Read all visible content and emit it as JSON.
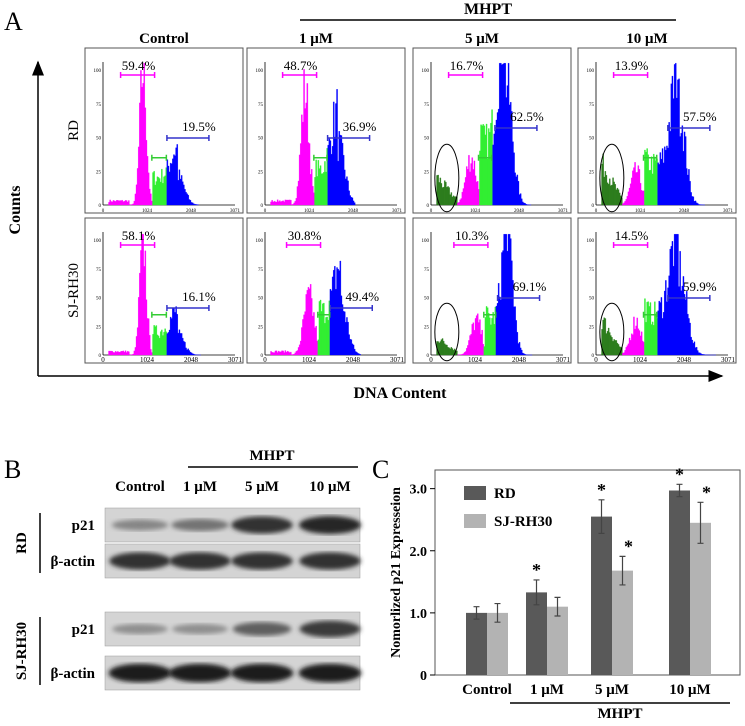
{
  "panel_a": {
    "letter": "A",
    "group": "MHPT",
    "columns": [
      "Control",
      "1 μM",
      "5 μM",
      "10 μM"
    ],
    "y_axis": "Counts",
    "x_axis": "DNA Content",
    "y_ticks": [
      "0",
      "25",
      "50",
      "75",
      "100"
    ],
    "x_ticks": [
      "0",
      "1024",
      "2048",
      "3071"
    ],
    "rows": [
      {
        "label": "RD",
        "g1": [
          "59.4%",
          "48.7%",
          "16.7%",
          "13.9%"
        ],
        "g2": [
          "19.5%",
          "36.9%",
          "62.5%",
          "57.5%"
        ]
      },
      {
        "label": "SJ-RH30",
        "g1": [
          "58.1%",
          "30.8%",
          "10.3%",
          "14.5%"
        ],
        "g2": [
          "16.1%",
          "49.4%",
          "69.1%",
          "59.9%"
        ]
      }
    ]
  },
  "panel_b": {
    "letter": "B",
    "group": "MHPT",
    "columns": [
      "Control",
      "1 μM",
      "5 μM",
      "10 μM"
    ],
    "blocks": [
      {
        "label": "RD",
        "bands": [
          "p21",
          "β-actin"
        ]
      },
      {
        "label": "SJ-RH30",
        "bands": [
          "p21",
          "β-actin"
        ]
      }
    ]
  },
  "chart_data": {
    "type": "bar",
    "letter": "C",
    "y_label": "Nomorlized p21 Expresseion",
    "group_label": "MHPT",
    "categories": [
      "Control",
      "1 μM",
      "5 μM",
      "10 μM"
    ],
    "series": [
      {
        "name": "RD",
        "color": "#595959",
        "values": [
          1.0,
          1.33,
          2.55,
          2.97
        ],
        "errors": [
          0.1,
          0.2,
          0.27,
          0.1
        ],
        "annotations": [
          null,
          "*",
          "*",
          "*"
        ]
      },
      {
        "name": "SJ-RH30",
        "color": "#b3b3b3",
        "values": [
          1.0,
          1.1,
          1.68,
          2.45
        ],
        "errors": [
          0.15,
          0.15,
          0.23,
          0.33
        ],
        "annotations": [
          null,
          null,
          "*",
          "*"
        ]
      }
    ],
    "ylim": [
      0,
      3.3
    ],
    "yticks": [
      0,
      {
        "value": 1,
        "label": "1.0"
      },
      {
        "value": 2,
        "label": "2.0"
      },
      {
        "value": 3,
        "label": "3.0"
      }
    ],
    "legend": "top-left"
  }
}
